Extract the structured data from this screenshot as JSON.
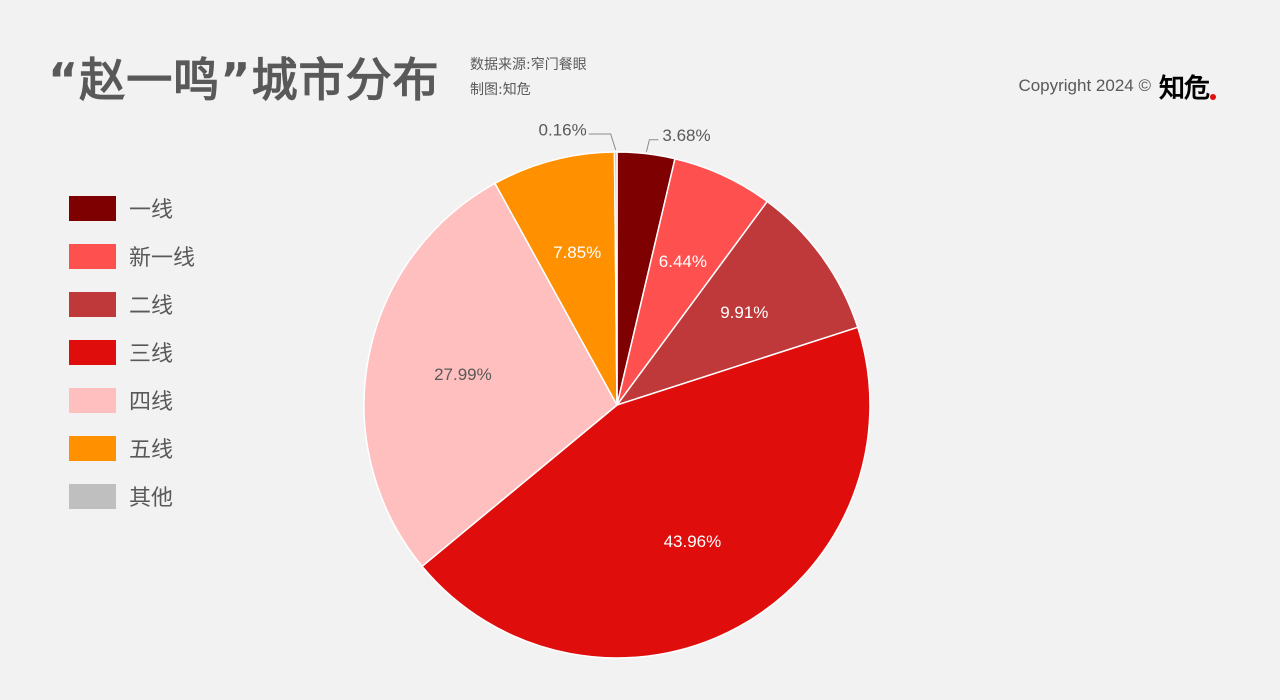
{
  "header": {
    "title": "“赵一鸣”城市分布",
    "source_line": "数据来源:窄门餐眼",
    "author_line": "制图:知危",
    "copyright": "Copyright 2024 ©",
    "brand": "知危"
  },
  "chart_data": {
    "type": "pie",
    "title": "“赵一鸣”城市分布",
    "legend_position": "left",
    "start_angle_deg": 0,
    "direction": "clockwise",
    "slices": [
      {
        "label": "一线",
        "value": 3.68,
        "value_label": "3.68%",
        "color": "#7f0000",
        "label_color": "#595959",
        "label_outside": true
      },
      {
        "label": "新一线",
        "value": 6.44,
        "value_label": "6.44%",
        "color": "#ff5050",
        "label_color": "#ffffff",
        "label_outside": false
      },
      {
        "label": "二线",
        "value": 9.91,
        "value_label": "9.91%",
        "color": "#c0393a",
        "label_color": "#ffffff",
        "label_outside": false
      },
      {
        "label": "三线",
        "value": 43.96,
        "value_label": "43.96%",
        "color": "#e00d0d",
        "label_color": "#ffffff",
        "label_outside": false
      },
      {
        "label": "四线",
        "value": 27.99,
        "value_label": "27.99%",
        "color": "#ffbfbf",
        "label_color": "#595959",
        "label_outside": false
      },
      {
        "label": "五线",
        "value": 7.85,
        "value_label": "7.85%",
        "color": "#ff9100",
        "label_color": "#ffffff",
        "label_outside": false
      },
      {
        "label": "其他",
        "value": 0.16,
        "value_label": "0.16%",
        "color": "#bfbfbf",
        "label_color": "#595959",
        "label_outside": true
      }
    ]
  }
}
